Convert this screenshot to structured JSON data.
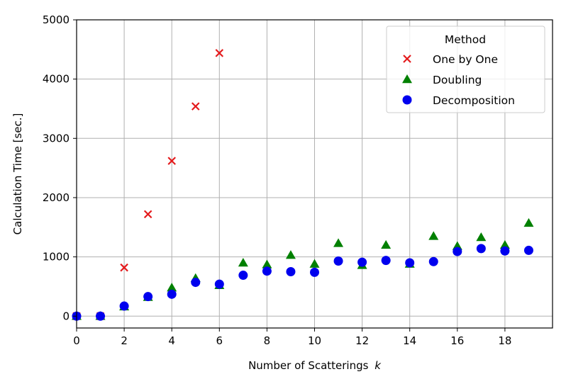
{
  "chart_data": {
    "type": "scatter",
    "xlabel": "Number of Scatterings",
    "xlabel_var": "k",
    "ylabel": "Calculation Time [sec.]",
    "xlim": [
      0,
      20
    ],
    "ylim": [
      -200,
      5000
    ],
    "xticks": [
      0,
      2,
      4,
      6,
      8,
      10,
      12,
      14,
      16,
      18
    ],
    "yticks": [
      0,
      1000,
      2000,
      3000,
      4000,
      5000
    ],
    "grid": true,
    "legend": {
      "title": "Method",
      "placement": "top-right"
    },
    "series": [
      {
        "name": "One by One",
        "marker": "x",
        "color": "#e41a1c",
        "points": [
          [
            0,
            0
          ],
          [
            1,
            0
          ],
          [
            2,
            820
          ],
          [
            3,
            1720
          ],
          [
            4,
            2620
          ],
          [
            5,
            3540
          ],
          [
            6,
            4440
          ]
        ]
      },
      {
        "name": "Doubling",
        "marker": "triangle",
        "color": "#008000",
        "points": [
          [
            0,
            0
          ],
          [
            1,
            0
          ],
          [
            2,
            160
          ],
          [
            3,
            320
          ],
          [
            4,
            480
          ],
          [
            5,
            640
          ],
          [
            6,
            520
          ],
          [
            7,
            900
          ],
          [
            8,
            870
          ],
          [
            9,
            1030
          ],
          [
            10,
            880
          ],
          [
            11,
            1230
          ],
          [
            12,
            860
          ],
          [
            13,
            1200
          ],
          [
            14,
            880
          ],
          [
            15,
            1350
          ],
          [
            16,
            1180
          ],
          [
            17,
            1330
          ],
          [
            18,
            1200
          ],
          [
            19,
            1570
          ]
        ]
      },
      {
        "name": "Decomposition",
        "marker": "circle",
        "color": "#0000ee",
        "points": [
          [
            0,
            0
          ],
          [
            1,
            0
          ],
          [
            2,
            170
          ],
          [
            3,
            330
          ],
          [
            4,
            370
          ],
          [
            5,
            570
          ],
          [
            6,
            540
          ],
          [
            7,
            690
          ],
          [
            8,
            760
          ],
          [
            9,
            750
          ],
          [
            10,
            740
          ],
          [
            11,
            930
          ],
          [
            12,
            910
          ],
          [
            13,
            940
          ],
          [
            14,
            900
          ],
          [
            15,
            920
          ],
          [
            16,
            1090
          ],
          [
            17,
            1140
          ],
          [
            18,
            1100
          ],
          [
            19,
            1110
          ]
        ]
      }
    ]
  }
}
